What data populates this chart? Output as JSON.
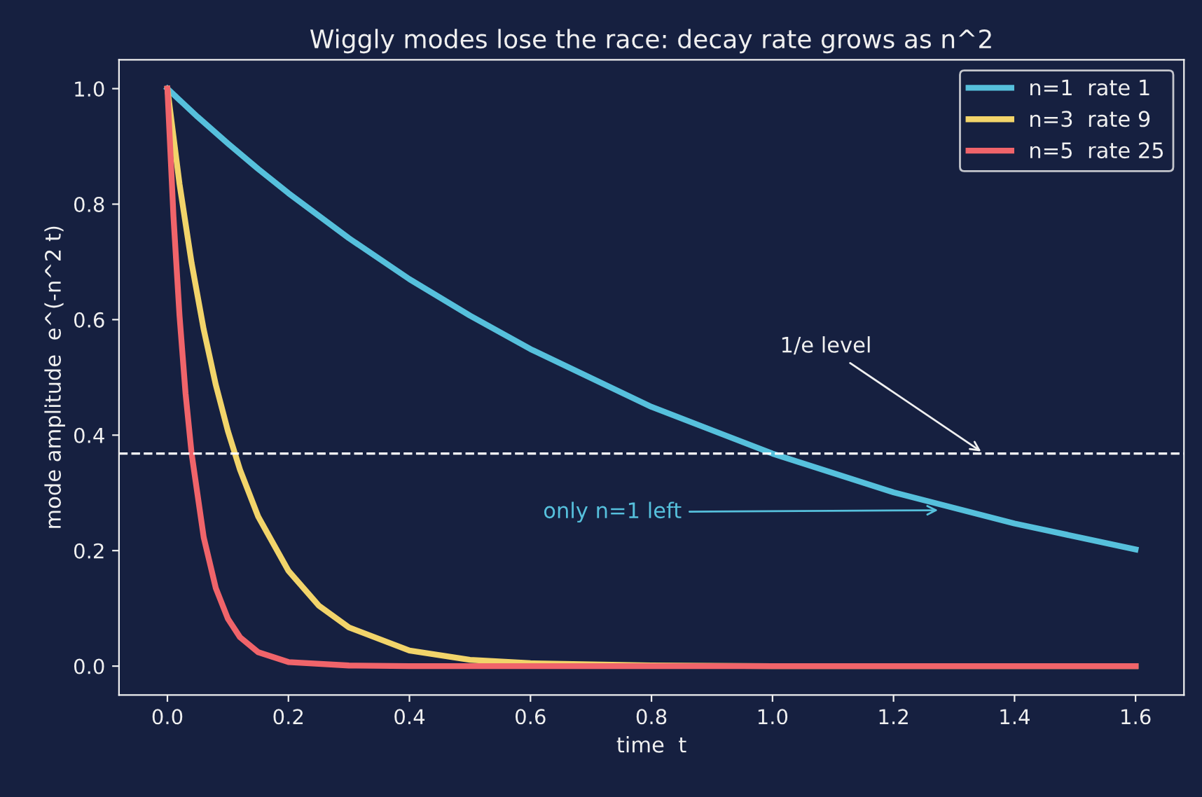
{
  "chart_data": {
    "type": "line",
    "title": "Wiggly modes lose the race: decay rate grows as n^2",
    "xlabel": "time  t",
    "ylabel": "mode amplitude  e^(-n^2 t)",
    "series": [
      {
        "name": "n=1  rate 1",
        "color": "#56c0dc",
        "x": [
          0,
          0.05,
          0.1,
          0.15,
          0.2,
          0.3,
          0.4,
          0.5,
          0.6,
          0.8,
          1.0,
          1.2,
          1.4,
          1.6
        ],
        "values": [
          1,
          0.951,
          0.905,
          0.861,
          0.819,
          0.741,
          0.67,
          0.607,
          0.549,
          0.449,
          0.368,
          0.301,
          0.247,
          0.202
        ]
      },
      {
        "name": "n=3  rate 9",
        "color": "#f2d46a",
        "x": [
          0,
          0.02,
          0.04,
          0.06,
          0.08,
          0.1,
          0.12,
          0.15,
          0.2,
          0.25,
          0.3,
          0.4,
          0.5,
          0.6,
          0.8,
          1.0,
          1.6
        ],
        "values": [
          1,
          0.835,
          0.698,
          0.583,
          0.487,
          0.407,
          0.34,
          0.259,
          0.165,
          0.105,
          0.067,
          0.027,
          0.011,
          0.005,
          0.001,
          0,
          0
        ]
      },
      {
        "name": "n=5  rate 25",
        "color": "#f0646a",
        "x": [
          0,
          0.01,
          0.02,
          0.03,
          0.04,
          0.06,
          0.08,
          0.1,
          0.12,
          0.15,
          0.2,
          0.3,
          0.4,
          1.6
        ],
        "values": [
          1,
          0.779,
          0.607,
          0.472,
          0.368,
          0.223,
          0.135,
          0.082,
          0.05,
          0.024,
          0.007,
          0.001,
          0,
          0
        ]
      }
    ],
    "xlim": [
      -0.08,
      1.68
    ],
    "xticks": [
      {
        "value": 0,
        "label": "0.0"
      },
      0.2,
      0.4,
      0.6,
      0.8,
      {
        "value": 1,
        "label": "1.0"
      },
      1.2,
      1.4,
      1.6
    ],
    "ylim": [
      -0.05,
      1.05
    ],
    "yticks": [
      {
        "value": 0,
        "label": "0.0"
      },
      0.2,
      0.4,
      0.6,
      0.8,
      {
        "value": 1,
        "label": "1.0"
      }
    ],
    "ref_lines": [
      {
        "axis": "y",
        "value": 0.368,
        "color": "#ffffff",
        "line_style": "dashed"
      }
    ],
    "annotations": [
      {
        "text": "1/e level",
        "x": 1.35,
        "y": 0.368
      },
      {
        "text": "only n=1 left",
        "x": 1.28,
        "y": 0.27
      }
    ],
    "legend": "top right",
    "grid": false,
    "marker": "none",
    "line_style": "solid"
  }
}
